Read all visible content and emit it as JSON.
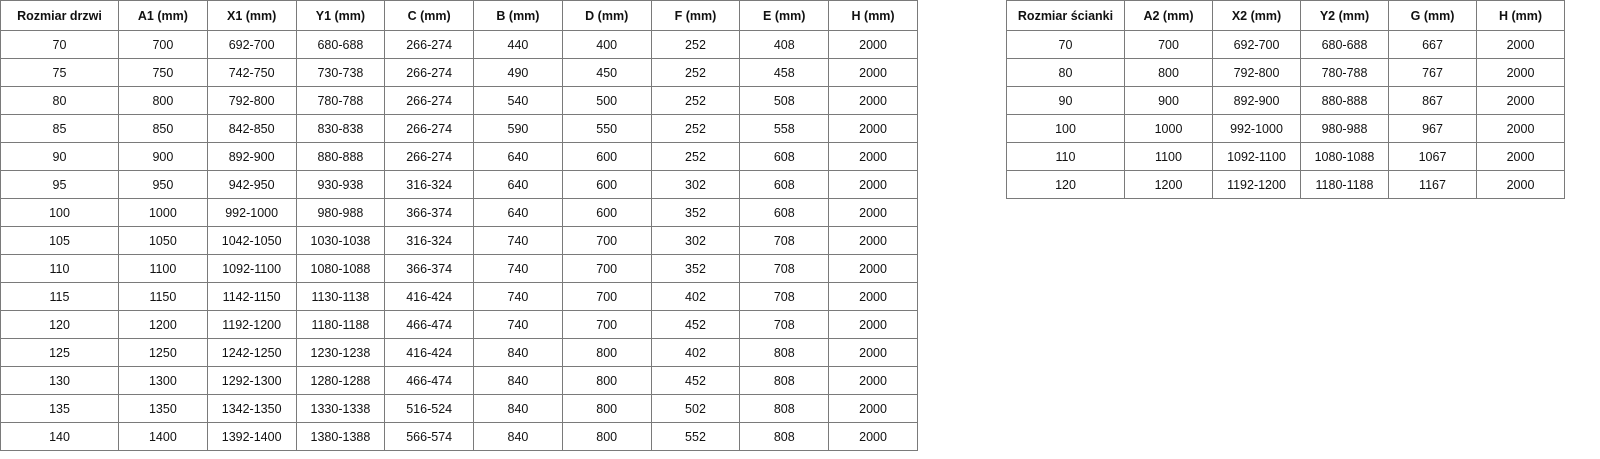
{
  "doors_table": {
    "headers": [
      "Rozmiar drzwi",
      "A1 (mm)",
      "X1 (mm)",
      "Y1 (mm)",
      "C (mm)",
      "B (mm)",
      "D (mm)",
      "F (mm)",
      "E (mm)",
      "H (mm)"
    ],
    "rows": [
      [
        "70",
        "700",
        "692-700",
        "680-688",
        "266-274",
        "440",
        "400",
        "252",
        "408",
        "2000"
      ],
      [
        "75",
        "750",
        "742-750",
        "730-738",
        "266-274",
        "490",
        "450",
        "252",
        "458",
        "2000"
      ],
      [
        "80",
        "800",
        "792-800",
        "780-788",
        "266-274",
        "540",
        "500",
        "252",
        "508",
        "2000"
      ],
      [
        "85",
        "850",
        "842-850",
        "830-838",
        "266-274",
        "590",
        "550",
        "252",
        "558",
        "2000"
      ],
      [
        "90",
        "900",
        "892-900",
        "880-888",
        "266-274",
        "640",
        "600",
        "252",
        "608",
        "2000"
      ],
      [
        "95",
        "950",
        "942-950",
        "930-938",
        "316-324",
        "640",
        "600",
        "302",
        "608",
        "2000"
      ],
      [
        "100",
        "1000",
        "992-1000",
        "980-988",
        "366-374",
        "640",
        "600",
        "352",
        "608",
        "2000"
      ],
      [
        "105",
        "1050",
        "1042-1050",
        "1030-1038",
        "316-324",
        "740",
        "700",
        "302",
        "708",
        "2000"
      ],
      [
        "110",
        "1100",
        "1092-1100",
        "1080-1088",
        "366-374",
        "740",
        "700",
        "352",
        "708",
        "2000"
      ],
      [
        "115",
        "1150",
        "1142-1150",
        "1130-1138",
        "416-424",
        "740",
        "700",
        "402",
        "708",
        "2000"
      ],
      [
        "120",
        "1200",
        "1192-1200",
        "1180-1188",
        "466-474",
        "740",
        "700",
        "452",
        "708",
        "2000"
      ],
      [
        "125",
        "1250",
        "1242-1250",
        "1230-1238",
        "416-424",
        "840",
        "800",
        "402",
        "808",
        "2000"
      ],
      [
        "130",
        "1300",
        "1292-1300",
        "1280-1288",
        "466-474",
        "840",
        "800",
        "452",
        "808",
        "2000"
      ],
      [
        "135",
        "1350",
        "1342-1350",
        "1330-1338",
        "516-524",
        "840",
        "800",
        "502",
        "808",
        "2000"
      ],
      [
        "140",
        "1400",
        "1392-1400",
        "1380-1388",
        "566-574",
        "840",
        "800",
        "552",
        "808",
        "2000"
      ]
    ]
  },
  "walls_table": {
    "headers": [
      "Rozmiar ścianki",
      "A2 (mm)",
      "X2 (mm)",
      "Y2 (mm)",
      "G (mm)",
      "H (mm)"
    ],
    "rows": [
      [
        "70",
        "700",
        "692-700",
        "680-688",
        "667",
        "2000"
      ],
      [
        "80",
        "800",
        "792-800",
        "780-788",
        "767",
        "2000"
      ],
      [
        "90",
        "900",
        "892-900",
        "880-888",
        "867",
        "2000"
      ],
      [
        "100",
        "1000",
        "992-1000",
        "980-988",
        "967",
        "2000"
      ],
      [
        "110",
        "1100",
        "1092-1100",
        "1080-1088",
        "1067",
        "2000"
      ],
      [
        "120",
        "1200",
        "1192-1200",
        "1180-1188",
        "1167",
        "2000"
      ]
    ]
  }
}
